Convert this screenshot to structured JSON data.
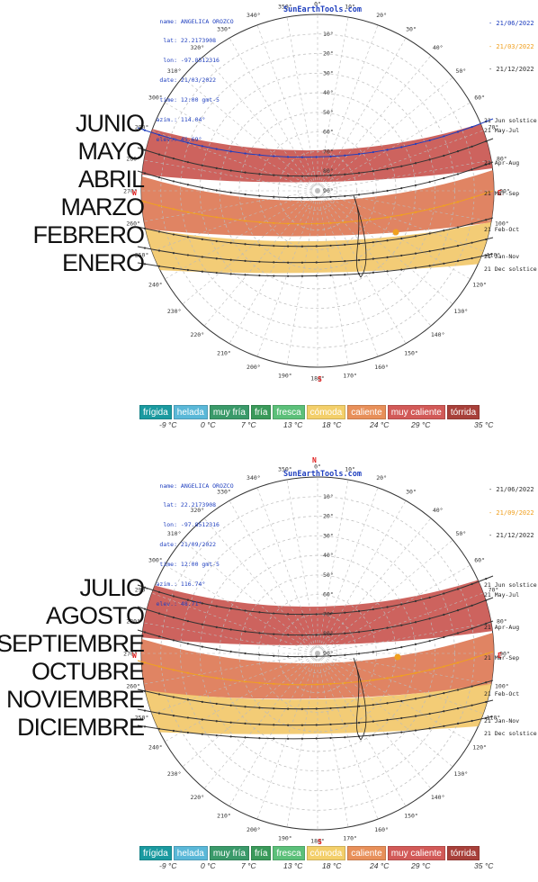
{
  "panels": [
    {
      "info": {
        "name": "ANGELICA OROZCO",
        "lat": "22.2173908",
        "lon": "-97.8512316",
        "date": "21/03/2022",
        "time": "12:00 gmt-5",
        "azim": "114.04°",
        "elev": "45.69°"
      },
      "site": "SunEarthTools.com",
      "dates": [
        "- 21/06/2022",
        "- 21/03/2022",
        "- 21/12/2022"
      ],
      "months": [
        "JUNIO",
        "MAYO",
        "ABRIL",
        "MARZO",
        "FEBRERO",
        "ENERO"
      ]
    },
    {
      "info": {
        "name": "ANGELICA OROZCO",
        "lat": "22.2173908",
        "lon": "-97.8512316",
        "date": "21/09/2022",
        "time": "12:00 gmt-5",
        "azim": "116.74°",
        "elev": "48.71°"
      },
      "site": "SunEarthTools.com",
      "dates": [
        "- 21/06/2022",
        "- 21/09/2022",
        "- 21/12/2022"
      ],
      "months": [
        "JULIO",
        "AGOSTO",
        "SEPTIEMBRE",
        "OCTUBRE",
        "NOVIEMBRE",
        "DICIEMBRE"
      ]
    }
  ],
  "info_keys": {
    "name": "name:",
    "lat": "lat:",
    "lon": "lon:",
    "date": "date:",
    "time": "time:",
    "azim": "azim.:",
    "elev": "elev.:"
  },
  "legend": [
    {
      "label": "frígida",
      "color": "#1a9aa0"
    },
    {
      "label": "helada",
      "color": "#5ab8d8"
    },
    {
      "label": "muy fría",
      "color": "#3a9a6a"
    },
    {
      "label": "fría",
      "color": "#3a9a5a"
    },
    {
      "label": "fresca",
      "color": "#5cc07a"
    },
    {
      "label": "cómoda",
      "color": "#f3cf6a"
    },
    {
      "label": "caliente",
      "color": "#e8905a"
    },
    {
      "label": "muy caliente",
      "color": "#d25a58"
    },
    {
      "label": "tórrida",
      "color": "#a8403a"
    }
  ],
  "scale_ticks": [
    "-9 °C",
    "0 °C",
    "7 °C",
    "13 °C",
    "18 °C",
    "24 °C",
    "29 °C",
    "35 °C"
  ],
  "chart_data": {
    "type": "polar-sun-path",
    "north": "N",
    "south": "S",
    "east": "E",
    "west": "W",
    "azimuth_labels": [
      "0°",
      "10°",
      "20°",
      "30°",
      "40°",
      "50°",
      "60°",
      "70°",
      "80°",
      "90°",
      "100°",
      "110°",
      "120°",
      "130°",
      "140°",
      "150°",
      "160°",
      "170°",
      "180°",
      "190°",
      "200°",
      "210°",
      "220°",
      "230°",
      "240°",
      "250°",
      "260°",
      "270°",
      "280°",
      "290°",
      "300°",
      "310°",
      "320°",
      "330°",
      "340°",
      "350°"
    ],
    "elevation_labels": [
      "10°",
      "20°",
      "30°",
      "40°",
      "50°",
      "60°",
      "70°",
      "80°",
      "90°"
    ],
    "path_labels": [
      "21 Jun  solstice",
      "21 May-Jul",
      "21 Apr-Aug",
      "21 Mar-Sep",
      "21 Feb-Oct",
      "21 Jan-Nov",
      "21 Dec  solstice"
    ],
    "series_colors": {
      "jun": "#1f3fbf",
      "equinox": "#f0a020",
      "dec": "#333333"
    }
  }
}
